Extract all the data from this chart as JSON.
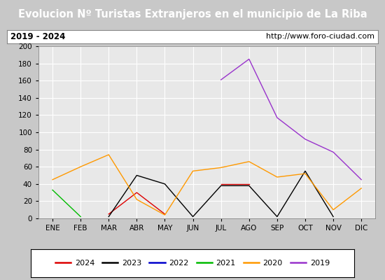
{
  "title": "Evolucion Nº Turistas Extranjeros en el municipio de La Riba",
  "subtitle_left": "2019 - 2024",
  "subtitle_right": "http://www.foro-ciudad.com",
  "months": [
    "ENE",
    "FEB",
    "MAR",
    "ABR",
    "MAY",
    "JUN",
    "JUL",
    "AGO",
    "SEP",
    "OCT",
    "NOV",
    "DIC"
  ],
  "title_bg": "#4a90d9",
  "title_color": "white",
  "outer_bg": "#c8c8c8",
  "inner_bg": "#e8e8e8",
  "subtitle_bg": "#ffffff",
  "ylim": [
    0,
    200
  ],
  "yticks": [
    0,
    20,
    40,
    60,
    80,
    100,
    120,
    140,
    160,
    180,
    200
  ],
  "series": {
    "2024": {
      "color": "#dd0000",
      "data": [
        null,
        null,
        5,
        30,
        5,
        null,
        40,
        40,
        null,
        null,
        null,
        null
      ]
    },
    "2023": {
      "color": "#000000",
      "data": [
        null,
        null,
        2,
        50,
        40,
        2,
        38,
        38,
        2,
        55,
        2,
        null
      ]
    },
    "2022": {
      "color": "#0000cc",
      "data": [
        null,
        null,
        null,
        null,
        null,
        null,
        null,
        null,
        null,
        null,
        null,
        null
      ]
    },
    "2021": {
      "color": "#00bb00",
      "data": [
        33,
        2,
        null,
        null,
        null,
        null,
        null,
        null,
        null,
        null,
        null,
        null
      ]
    },
    "2020": {
      "color": "#ff9900",
      "data": [
        45,
        60,
        74,
        22,
        4,
        55,
        59,
        66,
        48,
        52,
        10,
        35
      ]
    },
    "2019": {
      "color": "#9933cc",
      "data": [
        null,
        null,
        null,
        null,
        null,
        null,
        161,
        185,
        117,
        92,
        77,
        45
      ]
    }
  },
  "legend_order": [
    "2024",
    "2023",
    "2022",
    "2021",
    "2020",
    "2019"
  ]
}
